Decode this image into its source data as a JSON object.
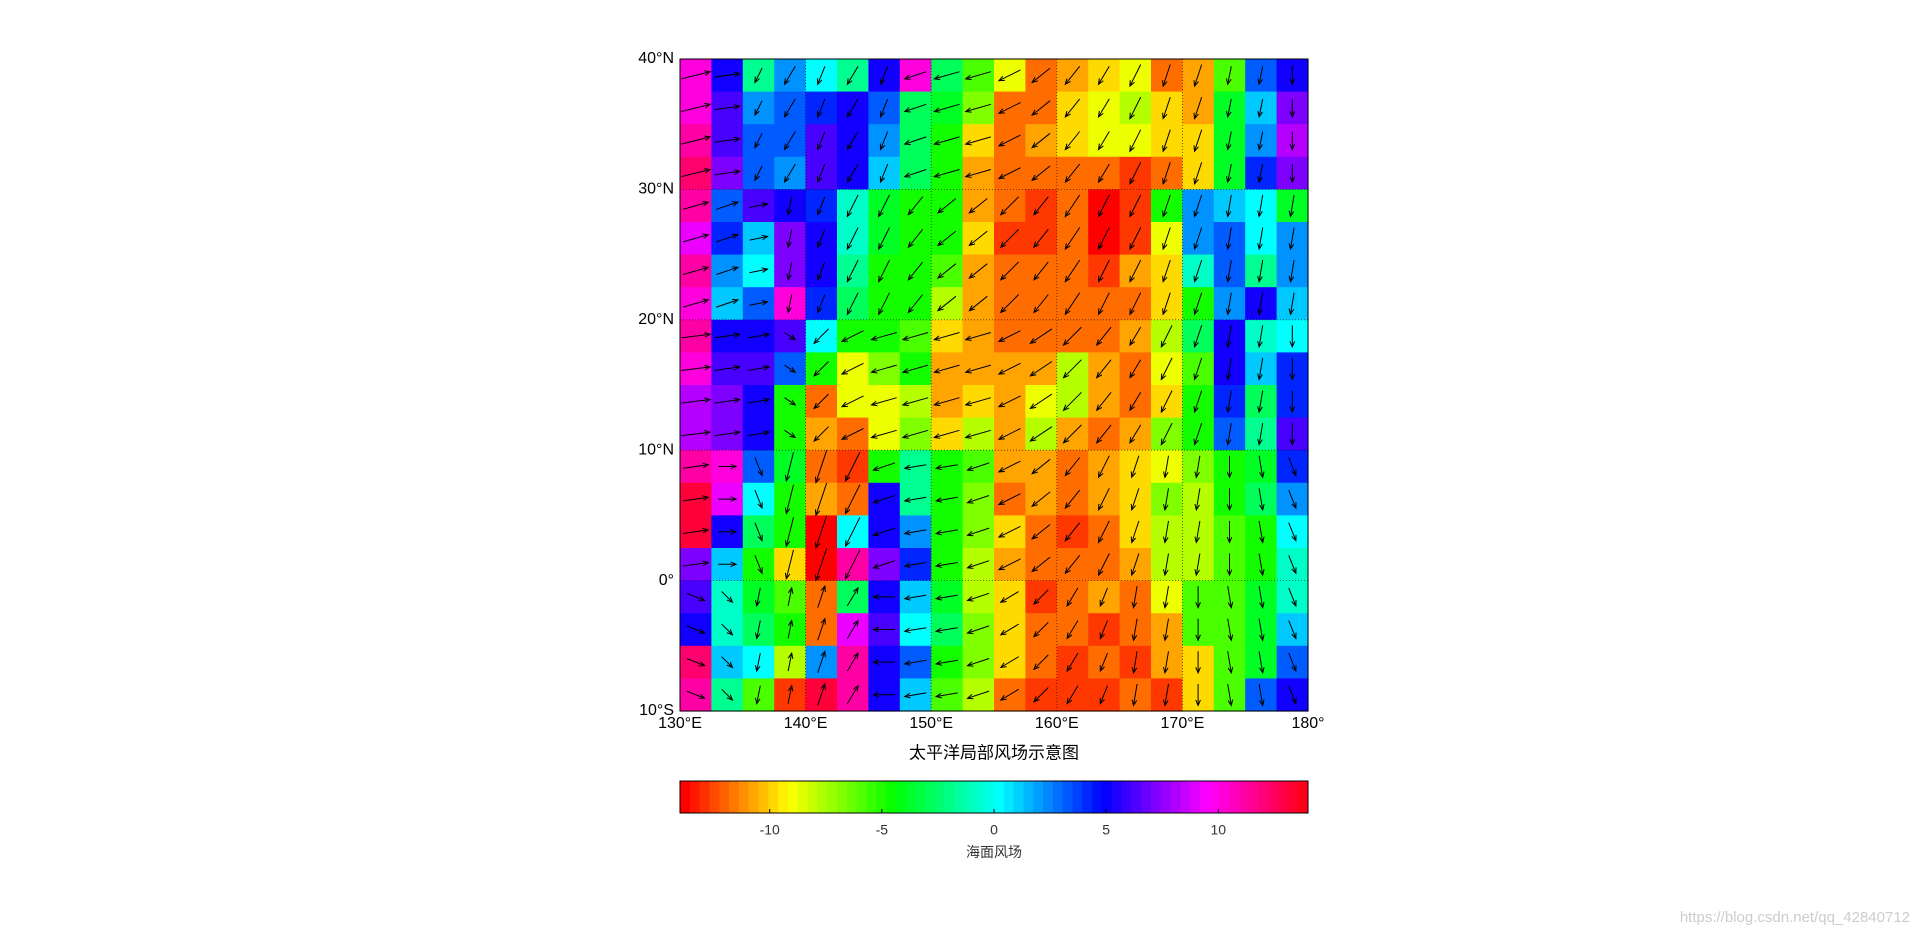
{
  "chart_data": {
    "type": "heatmap-quiver",
    "title": "太平洋局部风场示意图",
    "colorbar_label": "海面风场",
    "watermark": "https://blog.csdn.net/qq_42840712",
    "colormap": "hsv",
    "clim": [
      -14,
      14
    ],
    "cticks": [
      -10,
      -5,
      0,
      5,
      10
    ],
    "xlim": [
      130,
      180
    ],
    "ylim": [
      -10,
      40
    ],
    "xticks": [
      {
        "value": 130,
        "label": "130°E"
      },
      {
        "value": 140,
        "label": "140°E"
      },
      {
        "value": 150,
        "label": "150°E"
      },
      {
        "value": 160,
        "label": "160°E"
      },
      {
        "value": 170,
        "label": "170°E"
      },
      {
        "value": 180,
        "label": "180°"
      }
    ],
    "yticks": [
      {
        "value": 40,
        "label": "40°N"
      },
      {
        "value": 30,
        "label": "30°N"
      },
      {
        "value": 20,
        "label": "20°N"
      },
      {
        "value": 10,
        "label": "10°N"
      },
      {
        "value": 0,
        "label": "0°"
      },
      {
        "value": -10,
        "label": "10°S"
      }
    ],
    "grid": true,
    "values": [
      [
        10,
        5,
        -2,
        2,
        0,
        -2,
        5,
        10,
        -3,
        -6,
        -9,
        -12,
        -11,
        -10,
        -9,
        -12,
        -11,
        -6,
        3,
        5
      ],
      [
        10,
        6,
        2,
        3,
        4,
        5,
        3,
        -3,
        -4,
        -7,
        -12,
        -12,
        -10,
        -9,
        -8,
        -10,
        -11,
        -4,
        1,
        7
      ],
      [
        11,
        6,
        3,
        3,
        6,
        5,
        2,
        -3,
        -5,
        -10,
        -12,
        -11,
        -10,
        -9,
        -9,
        -10,
        -10,
        -4,
        2,
        8
      ],
      [
        12,
        7,
        3,
        2,
        6,
        5,
        1,
        -3,
        -5,
        -11,
        -12,
        -12,
        -12,
        -12,
        -13,
        -12,
        -10,
        -4,
        4,
        7
      ],
      [
        11,
        3,
        6,
        5,
        4,
        -1,
        -4,
        -5,
        -5,
        -11,
        -12,
        -13,
        -12,
        -14,
        -13,
        -5,
        2,
        1,
        0,
        -4
      ],
      [
        9,
        4,
        1,
        7,
        5,
        -1,
        -4,
        -5,
        -5,
        -10,
        -13,
        -13,
        -12,
        -14,
        -13,
        -9,
        2,
        3,
        0,
        2
      ],
      [
        11,
        2,
        0,
        7,
        5,
        -2,
        -5,
        -5,
        -6,
        -11,
        -12,
        -12,
        -12,
        -13,
        -11,
        -10,
        -1,
        3,
        -2,
        2
      ],
      [
        10,
        1,
        3,
        10,
        4,
        -3,
        -5,
        -5,
        -8,
        -11,
        -12,
        -12,
        -12,
        -12,
        -12,
        -10,
        -5,
        2,
        5,
        1
      ],
      [
        11,
        5,
        5,
        6,
        0,
        -5,
        -5,
        -6,
        -10,
        -11,
        -12,
        -12,
        -12,
        -12,
        -11,
        -8,
        -3,
        5,
        -1,
        0
      ],
      [
        10,
        6,
        6,
        3,
        -5,
        -9,
        -7,
        -5,
        -11,
        -11,
        -11,
        -11,
        -8,
        -11,
        -12,
        -9,
        -6,
        5,
        1,
        4
      ],
      [
        8,
        7,
        5,
        -5,
        -12,
        -9,
        -9,
        -8,
        -11,
        -10,
        -11,
        -9,
        -8,
        -11,
        -12,
        -10,
        -5,
        4,
        -3,
        4
      ],
      [
        8,
        7,
        5,
        -5,
        -11,
        -12,
        -9,
        -7,
        -10,
        -8,
        -11,
        -8,
        -11,
        -12,
        -11,
        -7,
        -5,
        3,
        -2,
        6
      ],
      [
        11,
        10,
        3,
        -4,
        -12,
        -13,
        -5,
        -2,
        -5,
        -6,
        -11,
        -11,
        -12,
        -11,
        -10,
        -9,
        -7,
        -5,
        -4,
        4
      ],
      [
        13,
        9,
        0,
        -5,
        -11,
        -12,
        5,
        -2,
        -5,
        -7,
        -12,
        -11,
        -12,
        -11,
        -10,
        -7,
        -8,
        -5,
        -3,
        2
      ],
      [
        13,
        5,
        -3,
        -5,
        -14,
        0,
        5,
        2,
        -5,
        -7,
        -10,
        -12,
        -13,
        -12,
        -10,
        -8,
        -8,
        -6,
        -5,
        0
      ],
      [
        7,
        1,
        -5,
        -10,
        -14,
        11,
        7,
        4,
        -5,
        -8,
        -11,
        -12,
        -12,
        -12,
        -11,
        -8,
        -8,
        -6,
        -5,
        -1
      ],
      [
        6,
        -1,
        -4,
        -6,
        -12,
        -3,
        5,
        1,
        -4,
        -8,
        -10,
        -13,
        -12,
        -11,
        -12,
        -9,
        -6,
        -6,
        -4,
        -1
      ],
      [
        5,
        -1,
        -3,
        -5,
        -12,
        9,
        6,
        0,
        -3,
        -7,
        -10,
        -12,
        -12,
        -13,
        -12,
        -11,
        -6,
        -6,
        -4,
        1
      ],
      [
        12,
        1,
        0,
        -8,
        2,
        11,
        5,
        3,
        -5,
        -7,
        -10,
        -12,
        -13,
        -12,
        -13,
        -11,
        -10,
        -6,
        -4,
        3
      ],
      [
        11,
        -2,
        -6,
        -13,
        13,
        11,
        5,
        1,
        -6,
        -8,
        -12,
        -13,
        -13,
        -13,
        -12,
        -13,
        -10,
        -6,
        3,
        5
      ]
    ],
    "u": [
      [
        8,
        7,
        -2,
        -3,
        -2,
        -3,
        -2,
        -6,
        -7,
        -7,
        -6,
        -5,
        -4,
        -3,
        -3,
        -2,
        -2,
        -1,
        -1,
        0
      ],
      [
        8,
        7,
        -2,
        -3,
        -2,
        -3,
        -2,
        -6,
        -7,
        -7,
        -6,
        -5,
        -4,
        -3,
        -3,
        -2,
        -2,
        -1,
        -1,
        0
      ],
      [
        8,
        7,
        -2,
        -3,
        -2,
        -3,
        -2,
        -6,
        -7,
        -7,
        -6,
        -5,
        -4,
        -3,
        -3,
        -2,
        -2,
        -1,
        -1,
        0
      ],
      [
        8,
        7,
        -2,
        -3,
        -2,
        -3,
        -2,
        -6,
        -7,
        -7,
        -6,
        -5,
        -4,
        -3,
        -3,
        -2,
        -2,
        -1,
        -1,
        0
      ],
      [
        7,
        6,
        5,
        -1,
        -2,
        -3,
        -3,
        -4,
        -5,
        -5,
        -5,
        -4,
        -4,
        -3,
        -3,
        -2,
        -2,
        -1,
        -1,
        -1
      ],
      [
        7,
        6,
        5,
        -1,
        -2,
        -3,
        -3,
        -4,
        -5,
        -5,
        -5,
        -4,
        -4,
        -3,
        -3,
        -2,
        -2,
        -1,
        -1,
        -1
      ],
      [
        7,
        6,
        5,
        -1,
        -2,
        -3,
        -3,
        -4,
        -5,
        -5,
        -5,
        -4,
        -4,
        -3,
        -3,
        -2,
        -2,
        -1,
        -1,
        -1
      ],
      [
        7,
        6,
        5,
        -1,
        -2,
        -3,
        -3,
        -4,
        -5,
        -5,
        -5,
        -4,
        -4,
        -3,
        -3,
        -2,
        -2,
        -1,
        -1,
        -1
      ],
      [
        8,
        7,
        6,
        3,
        -4,
        -6,
        -7,
        -7,
        -7,
        -7,
        -6,
        -6,
        -5,
        -4,
        -3,
        -3,
        -2,
        -1,
        -1,
        0
      ],
      [
        8,
        7,
        6,
        3,
        -4,
        -6,
        -7,
        -7,
        -7,
        -7,
        -6,
        -6,
        -5,
        -4,
        -3,
        -3,
        -2,
        -1,
        -1,
        0
      ],
      [
        8,
        7,
        6,
        3,
        -4,
        -6,
        -7,
        -7,
        -7,
        -7,
        -6,
        -6,
        -5,
        -4,
        -3,
        -3,
        -2,
        -1,
        -1,
        0
      ],
      [
        8,
        7,
        6,
        3,
        -4,
        -6,
        -7,
        -7,
        -7,
        -7,
        -6,
        -6,
        -5,
        -4,
        -3,
        -3,
        -2,
        -1,
        -1,
        0
      ],
      [
        7,
        5,
        2,
        -2,
        -3,
        -4,
        -6,
        -6,
        -6,
        -6,
        -6,
        -5,
        -4,
        -3,
        -2,
        -1,
        -1,
        0,
        1,
        2
      ],
      [
        7,
        5,
        2,
        -2,
        -3,
        -4,
        -6,
        -6,
        -6,
        -6,
        -6,
        -5,
        -4,
        -3,
        -2,
        -1,
        -1,
        0,
        1,
        2
      ],
      [
        7,
        5,
        2,
        -2,
        -3,
        -4,
        -6,
        -6,
        -6,
        -6,
        -6,
        -5,
        -4,
        -3,
        -2,
        -1,
        -1,
        0,
        1,
        2
      ],
      [
        7,
        5,
        2,
        -2,
        -3,
        -4,
        -6,
        -6,
        -6,
        -6,
        -6,
        -5,
        -4,
        -3,
        -2,
        -1,
        -1,
        0,
        1,
        2
      ],
      [
        5,
        3,
        -1,
        1,
        2,
        3,
        -6,
        -6,
        -6,
        -6,
        -5,
        -4,
        -3,
        -2,
        -1,
        -1,
        0,
        1,
        1,
        2
      ],
      [
        5,
        3,
        -1,
        1,
        2,
        3,
        -6,
        -6,
        -6,
        -6,
        -5,
        -4,
        -3,
        -2,
        -1,
        -1,
        0,
        1,
        1,
        2
      ],
      [
        5,
        3,
        -1,
        1,
        2,
        3,
        -6,
        -6,
        -6,
        -6,
        -5,
        -4,
        -3,
        -2,
        -1,
        -1,
        0,
        1,
        1,
        2
      ],
      [
        5,
        3,
        -1,
        1,
        2,
        3,
        -6,
        -6,
        -6,
        -6,
        -5,
        -4,
        -3,
        -2,
        -1,
        -1,
        0,
        1,
        1,
        2
      ]
    ],
    "v": [
      [
        2,
        1,
        -4,
        -5,
        -5,
        -5,
        -5,
        -2,
        -2,
        -2,
        -3,
        -4,
        -5,
        -5,
        -6,
        -6,
        -6,
        -5,
        -5,
        -5
      ],
      [
        2,
        1,
        -4,
        -5,
        -5,
        -5,
        -5,
        -2,
        -2,
        -2,
        -3,
        -4,
        -5,
        -5,
        -6,
        -6,
        -6,
        -5,
        -5,
        -5
      ],
      [
        2,
        1,
        -4,
        -5,
        -5,
        -5,
        -5,
        -2,
        -2,
        -2,
        -3,
        -4,
        -5,
        -5,
        -6,
        -6,
        -6,
        -5,
        -5,
        -5
      ],
      [
        2,
        1,
        -4,
        -5,
        -5,
        -5,
        -5,
        -2,
        -2,
        -2,
        -3,
        -4,
        -5,
        -5,
        -6,
        -6,
        -6,
        -5,
        -5,
        -5
      ],
      [
        2,
        2,
        1,
        -5,
        -5,
        -6,
        -6,
        -5,
        -4,
        -4,
        -5,
        -5,
        -6,
        -6,
        -6,
        -6,
        -6,
        -6,
        -6,
        -6
      ],
      [
        2,
        2,
        1,
        -5,
        -5,
        -6,
        -6,
        -5,
        -4,
        -4,
        -5,
        -5,
        -6,
        -6,
        -6,
        -6,
        -6,
        -6,
        -6,
        -6
      ],
      [
        2,
        2,
        1,
        -5,
        -5,
        -6,
        -6,
        -5,
        -4,
        -4,
        -5,
        -5,
        -6,
        -6,
        -6,
        -6,
        -6,
        -6,
        -6,
        -6
      ],
      [
        2,
        2,
        1,
        -5,
        -5,
        -6,
        -6,
        -5,
        -4,
        -4,
        -5,
        -5,
        -6,
        -6,
        -6,
        -6,
        -6,
        -6,
        -6,
        -6
      ],
      [
        1,
        1,
        1,
        -2,
        -4,
        -3,
        -2,
        -2,
        -2,
        -2,
        -3,
        -4,
        -5,
        -5,
        -5,
        -6,
        -6,
        -6,
        -6,
        -6
      ],
      [
        1,
        1,
        1,
        -2,
        -4,
        -3,
        -2,
        -2,
        -2,
        -2,
        -3,
        -4,
        -5,
        -5,
        -5,
        -6,
        -6,
        -6,
        -6,
        -6
      ],
      [
        1,
        1,
        1,
        -2,
        -4,
        -3,
        -2,
        -2,
        -2,
        -2,
        -3,
        -4,
        -5,
        -5,
        -5,
        -6,
        -6,
        -6,
        -6,
        -6
      ],
      [
        1,
        1,
        1,
        -2,
        -4,
        -3,
        -2,
        -2,
        -2,
        -2,
        -3,
        -4,
        -5,
        -5,
        -5,
        -6,
        -6,
        -6,
        -6,
        -6
      ],
      [
        1,
        0,
        -5,
        -8,
        -9,
        -8,
        -2,
        -1,
        -1,
        -2,
        -3,
        -4,
        -5,
        -6,
        -6,
        -6,
        -6,
        -6,
        -6,
        -5
      ],
      [
        1,
        0,
        -5,
        -8,
        -9,
        -8,
        -2,
        -1,
        -1,
        -2,
        -3,
        -4,
        -5,
        -6,
        -6,
        -6,
        -6,
        -6,
        -6,
        -5
      ],
      [
        1,
        0,
        -5,
        -8,
        -9,
        -8,
        -2,
        -1,
        -1,
        -2,
        -3,
        -4,
        -5,
        -6,
        -6,
        -6,
        -6,
        -6,
        -6,
        -5
      ],
      [
        1,
        0,
        -5,
        -8,
        -9,
        -8,
        -2,
        -1,
        -1,
        -2,
        -3,
        -4,
        -5,
        -6,
        -6,
        -6,
        -6,
        -6,
        -6,
        -5
      ],
      [
        -2,
        -3,
        -5,
        5,
        6,
        5,
        0,
        -1,
        -1,
        -2,
        -3,
        -4,
        -5,
        -5,
        -6,
        -6,
        -6,
        -6,
        -6,
        -5
      ],
      [
        -2,
        -3,
        -5,
        5,
        6,
        5,
        0,
        -1,
        -1,
        -2,
        -3,
        -4,
        -5,
        -5,
        -6,
        -6,
        -6,
        -6,
        -6,
        -5
      ],
      [
        -2,
        -3,
        -5,
        5,
        6,
        5,
        0,
        -1,
        -1,
        -2,
        -3,
        -4,
        -5,
        -5,
        -6,
        -6,
        -6,
        -6,
        -6,
        -5
      ],
      [
        -2,
        -3,
        -5,
        5,
        6,
        5,
        0,
        -1,
        -1,
        -2,
        -3,
        -4,
        -5,
        -5,
        -6,
        -6,
        -6,
        -6,
        -6,
        -5
      ]
    ]
  }
}
